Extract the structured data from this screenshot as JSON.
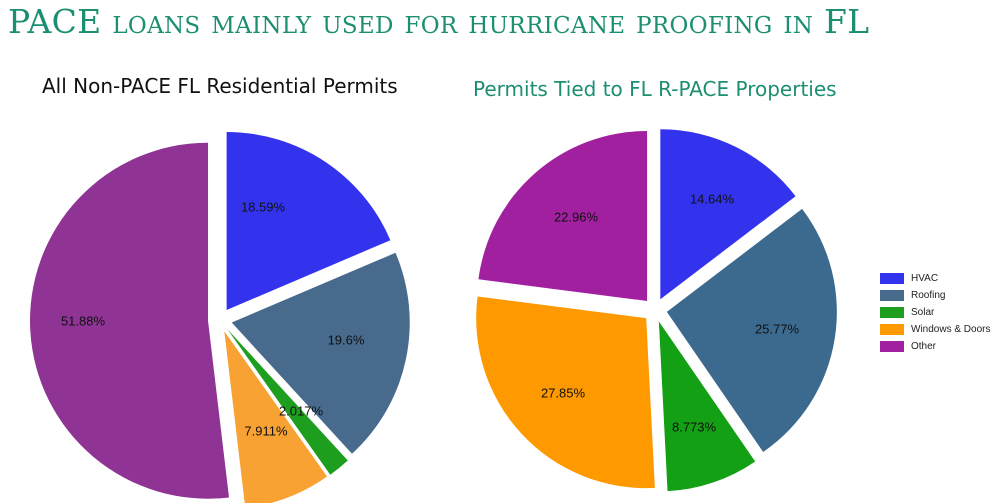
{
  "slide": {
    "title": "PACE loans mainly used for hurricane proofing in FL"
  },
  "chart_data": [
    {
      "type": "pie",
      "title": "All Non-PACE FL Residential Permits",
      "categories": [
        "HVAC",
        "Roofing",
        "Solar",
        "Windows & Doors",
        "Other"
      ],
      "values": [
        18.59,
        19.6,
        2.017,
        7.911,
        51.88
      ],
      "labels": [
        "18.59%",
        "19.6%",
        "2.017%",
        "7.911%",
        "51.88%"
      ],
      "colors": [
        "#3333ee",
        "#476a8d",
        "#1e9e1e",
        "#f7a233",
        "#8f3394"
      ]
    },
    {
      "type": "pie",
      "title": "Permits Tied to FL R-PACE Properties",
      "categories": [
        "HVAC",
        "Roofing",
        "Solar",
        "Windows & Doors",
        "Other"
      ],
      "values": [
        14.64,
        25.77,
        8.773,
        27.85,
        22.96
      ],
      "labels": [
        "14.64%",
        "25.77%",
        "8.773%",
        "27.85%",
        "22.96%"
      ],
      "colors": [
        "#3333ee",
        "#3c6a8e",
        "#14a014",
        "#ff9900",
        "#a020a0"
      ]
    }
  ],
  "legend": {
    "position": "right",
    "items": [
      {
        "label": "HVAC",
        "color": "#3333ee"
      },
      {
        "label": "Roofing",
        "color": "#476a8d"
      },
      {
        "label": "Solar",
        "color": "#1e9e1e"
      },
      {
        "label": "Windows & Doors",
        "color": "#ff9900"
      },
      {
        "label": "Other",
        "color": "#a020a0"
      }
    ]
  }
}
